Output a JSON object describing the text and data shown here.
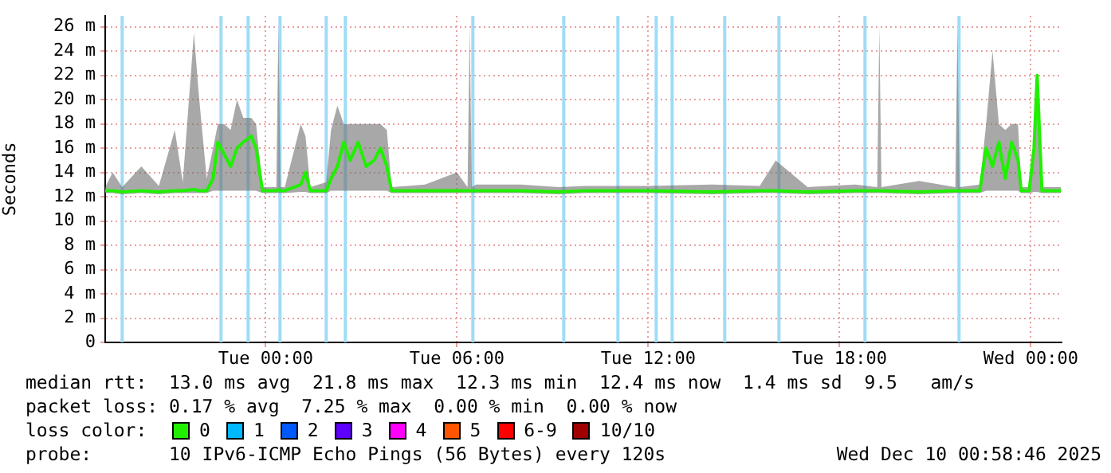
{
  "chart_data": {
    "type": "line",
    "ylabel": "Seconds",
    "x": [
      "2025-12-08T18:58",
      "2025-12-08T19:12",
      "2025-12-08T19:30",
      "2025-12-08T20:06",
      "2025-12-08T20:39",
      "2025-12-08T21:09",
      "2025-12-08T21:24",
      "2025-12-08T21:45",
      "2025-12-08T21:54",
      "2025-12-08T22:09",
      "2025-12-08T22:21",
      "2025-12-08T22:30",
      "2025-12-08T22:42",
      "2025-12-08T22:54",
      "2025-12-08T23:06",
      "2025-12-08T23:18",
      "2025-12-08T23:33",
      "2025-12-08T23:42",
      "2025-12-08T23:54",
      "2025-12-09T00:20",
      "2025-12-09T00:24",
      "2025-12-09T00:28",
      "2025-12-09T00:36",
      "2025-12-09T01:06",
      "2025-12-09T01:15",
      "2025-12-09T01:24",
      "2025-12-09T01:54",
      "2025-12-09T02:03",
      "2025-12-09T02:15",
      "2025-12-09T02:27",
      "2025-12-09T02:39",
      "2025-12-09T02:54",
      "2025-12-09T03:09",
      "2025-12-09T03:24",
      "2025-12-09T03:36",
      "2025-12-09T03:48",
      "2025-12-09T03:57",
      "2025-12-09T05:00",
      "2025-12-09T06:00",
      "2025-12-09T06:20",
      "2025-12-09T06:24",
      "2025-12-09T06:28",
      "2025-12-09T06:36",
      "2025-12-09T08:00",
      "2025-12-09T09:12",
      "2025-12-09T10:00",
      "2025-12-09T12:00",
      "2025-12-09T14:00",
      "2025-12-09T15:30",
      "2025-12-09T16:00",
      "2025-12-09T17:00",
      "2025-12-09T18:30",
      "2025-12-09T19:11",
      "2025-12-09T19:15",
      "2025-12-09T19:19",
      "2025-12-09T20:30",
      "2025-12-09T21:38",
      "2025-12-09T21:42",
      "2025-12-09T21:46",
      "2025-12-09T22:24",
      "2025-12-09T22:36",
      "2025-12-09T22:48",
      "2025-12-09T23:00",
      "2025-12-09T23:12",
      "2025-12-09T23:24",
      "2025-12-09T23:36",
      "2025-12-09T23:42",
      "2025-12-09T23:57",
      "2025-12-10T00:06",
      "2025-12-10T00:12",
      "2025-12-10T00:21",
      "2025-12-10T00:57"
    ],
    "series": [
      {
        "color": "#20f000",
        "values": [
          12.5,
          12.5,
          12.4,
          12.5,
          12.4,
          12.5,
          12.5,
          12.6,
          12.5,
          12.5,
          13.5,
          16.5,
          15.5,
          14.5,
          16.0,
          16.5,
          17.0,
          16.0,
          12.5,
          12.5,
          12.6,
          12.5,
          12.5,
          13.0,
          14.0,
          12.5,
          12.5,
          13.5,
          14.5,
          16.5,
          15.0,
          16.5,
          14.5,
          15.0,
          16.0,
          14.5,
          12.5,
          12.5,
          12.5,
          12.5,
          12.5,
          12.5,
          12.5,
          12.5,
          12.4,
          12.5,
          12.5,
          12.4,
          12.5,
          12.5,
          12.4,
          12.5,
          12.5,
          12.5,
          12.5,
          12.4,
          12.5,
          12.5,
          12.5,
          12.5,
          16.0,
          14.5,
          16.5,
          13.5,
          16.5,
          15.0,
          12.5,
          12.5,
          16.0,
          22.0,
          12.5,
          12.5
        ],
        "lower": [
          12.3,
          12.3,
          12.2,
          12.3,
          12.2,
          12.3,
          12.3,
          12.3,
          12.3,
          12.3,
          12.5,
          12.5,
          12.5,
          12.5,
          12.5,
          12.5,
          12.5,
          12.5,
          12.3,
          12.3,
          12.3,
          12.3,
          12.3,
          12.4,
          12.4,
          12.3,
          12.3,
          12.5,
          12.5,
          12.5,
          12.5,
          12.5,
          12.5,
          12.5,
          12.5,
          12.5,
          12.3,
          12.3,
          12.3,
          12.3,
          12.3,
          12.3,
          12.3,
          12.3,
          12.2,
          12.3,
          12.3,
          12.2,
          12.3,
          12.3,
          12.2,
          12.3,
          12.3,
          12.3,
          12.3,
          12.2,
          12.3,
          12.3,
          12.3,
          12.3,
          12.5,
          12.5,
          12.5,
          12.5,
          12.5,
          12.5,
          12.3,
          12.3,
          12.4,
          12.4,
          12.3,
          12.3
        ],
        "upper": [
          12.8,
          14.0,
          12.8,
          14.5,
          12.9,
          17.5,
          13.2,
          25.5,
          20.5,
          13.5,
          16.0,
          18.0,
          18.0,
          17.5,
          20.0,
          18.5,
          18.5,
          18.0,
          12.8,
          12.8,
          26.0,
          12.8,
          12.8,
          18.0,
          17.0,
          12.8,
          13.2,
          17.5,
          19.5,
          18.0,
          18.0,
          18.0,
          18.0,
          18.0,
          18.0,
          17.5,
          12.8,
          13.0,
          14.0,
          12.8,
          26.0,
          12.8,
          13.0,
          13.0,
          12.8,
          12.9,
          12.9,
          13.0,
          12.9,
          15.0,
          12.8,
          13.0,
          12.8,
          26.0,
          12.8,
          13.3,
          12.8,
          26.0,
          12.8,
          13.0,
          18.0,
          24.0,
          18.0,
          17.5,
          18.0,
          18.0,
          12.8,
          12.8,
          16.0,
          22.0,
          12.8,
          12.8
        ]
      }
    ],
    "xlim": [
      "2025-12-08T18:58",
      "2025-12-10T00:58"
    ],
    "xticks": [
      {
        "value": "2025-12-09T00:00",
        "label": "Tue 00:00"
      },
      {
        "value": "2025-12-09T06:00",
        "label": "Tue 06:00"
      },
      {
        "value": "2025-12-09T12:00",
        "label": "Tue 12:00"
      },
      {
        "value": "2025-12-09T18:00",
        "label": "Tue 18:00"
      },
      {
        "value": "2025-12-10T00:00",
        "label": "Wed 00:00"
      }
    ],
    "ylim": [
      0,
      26.9
    ],
    "yticks": [
      {
        "value": 0,
        "label": "0"
      },
      {
        "value": 2,
        "label": "2 m"
      },
      {
        "value": 4,
        "label": "4 m"
      },
      {
        "value": 6,
        "label": "6 m"
      },
      {
        "value": 8,
        "label": "8 m"
      },
      {
        "value": 10,
        "label": "10 m"
      },
      {
        "value": 12,
        "label": "12 m"
      },
      {
        "value": 14,
        "label": "14 m"
      },
      {
        "value": 16,
        "label": "16 m"
      },
      {
        "value": 18,
        "label": "18 m"
      },
      {
        "value": 20,
        "label": "20 m"
      },
      {
        "value": 22,
        "label": "22 m"
      },
      {
        "value": 24,
        "label": "24 m"
      },
      {
        "value": 26,
        "label": "26 m"
      }
    ],
    "ref_lines": [
      {
        "axis": "x",
        "value": "2025-12-08T19:30",
        "color": "#9fdcf5"
      },
      {
        "axis": "x",
        "value": "2025-12-08T22:36",
        "color": "#9fdcf5"
      },
      {
        "axis": "x",
        "value": "2025-12-08T23:27",
        "color": "#9fdcf5"
      },
      {
        "axis": "x",
        "value": "2025-12-09T00:27",
        "color": "#9fdcf5"
      },
      {
        "axis": "x",
        "value": "2025-12-09T01:54",
        "color": "#9fdcf5"
      },
      {
        "axis": "x",
        "value": "2025-12-09T02:30",
        "color": "#9fdcf5"
      },
      {
        "axis": "x",
        "value": "2025-12-09T06:30",
        "color": "#9fdcf5"
      },
      {
        "axis": "x",
        "value": "2025-12-09T09:21",
        "color": "#9fdcf5"
      },
      {
        "axis": "x",
        "value": "2025-12-09T11:03",
        "color": "#9fdcf5"
      },
      {
        "axis": "x",
        "value": "2025-12-09T12:15",
        "color": "#9fdcf5"
      },
      {
        "axis": "x",
        "value": "2025-12-09T12:45",
        "color": "#9fdcf5"
      },
      {
        "axis": "x",
        "value": "2025-12-09T14:24",
        "color": "#9fdcf5"
      },
      {
        "axis": "x",
        "value": "2025-12-09T16:06",
        "color": "#9fdcf5"
      },
      {
        "axis": "x",
        "value": "2025-12-09T18:48",
        "color": "#9fdcf5"
      },
      {
        "axis": "x",
        "value": "2025-12-09T21:45",
        "color": "#9fdcf5"
      }
    ],
    "grid": true,
    "legend": false,
    "marker": "none",
    "annotations": [
      "median rtt:  13.0 ms avg  21.8 ms max  12.3 ms min  12.4 ms now  1.4 ms sd  9.5   am/s",
      "packet loss: 0.17 % avg  7.25 % max  0.00 % min  0.00 % now",
      "loss color:",
      "0",
      "1",
      "2",
      "3",
      "4",
      "5",
      "6-9",
      "10/10",
      "probe:       10 IPv6-ICMP Echo Pings (56 Bytes) every 120s",
      "Wed Dec 10 00:58:46 2025"
    ]
  }
}
